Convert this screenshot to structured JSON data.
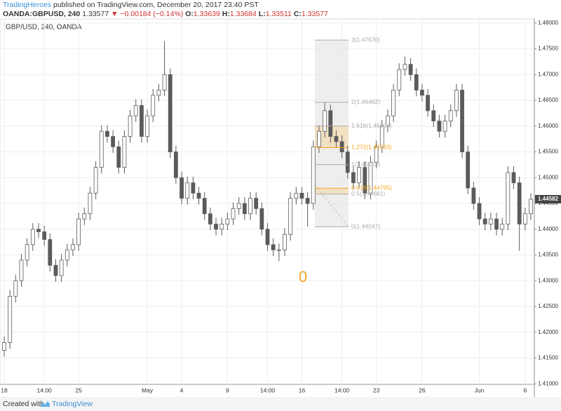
{
  "header": {
    "author": "TradingHeroes",
    "published": "published on TradingView.com, December 20, 2017 23:40 PST",
    "symbol": "OANDA:GBPUSD, 240",
    "price": "1.33577",
    "change": "▼ −0.00184 (−0.14%)",
    "ohlc": [
      {
        "k": "O:",
        "v": "1.33639"
      },
      {
        "k": "H:",
        "v": "1.33684"
      },
      {
        "k": "L:",
        "v": "1.33511"
      },
      {
        "k": "C:",
        "v": "1.33577"
      }
    ]
  },
  "footer": {
    "created": "Created with",
    "brand": "TradingView"
  },
  "chart_data": {
    "type": "candlestick",
    "legend_text": "GBP/USD, 240, OANDA",
    "categories": [
      "18",
      null,
      null,
      null,
      null,
      null,
      null,
      "14:00",
      null,
      null,
      null,
      null,
      null,
      "25",
      null,
      null,
      null,
      null,
      null,
      null,
      null,
      null,
      null,
      null,
      null,
      "May",
      null,
      null,
      null,
      null,
      null,
      "4",
      null,
      null,
      null,
      null,
      null,
      null,
      null,
      "9",
      null,
      null,
      null,
      null,
      null,
      null,
      "14:00",
      null,
      null,
      null,
      null,
      null,
      "16",
      null,
      null,
      null,
      null,
      null,
      null,
      "14:00",
      null,
      null,
      null,
      null,
      null,
      "23",
      null,
      null,
      null,
      null,
      null,
      null,
      null,
      "26",
      null,
      null,
      null,
      null,
      null,
      null,
      null,
      null,
      null,
      "Jun",
      null,
      null,
      null,
      null,
      null,
      null,
      null,
      "6",
      null
    ],
    "open": [
      1.4165,
      1.418,
      1.427,
      1.43,
      1.434,
      1.437,
      1.44,
      1.4395,
      1.438,
      1.433,
      1.431,
      1.434,
      1.436,
      1.437,
      1.442,
      1.443,
      1.447,
      1.452,
      1.459,
      1.458,
      1.456,
      1.452,
      1.458,
      1.462,
      1.464,
      1.458,
      1.462,
      1.466,
      1.467,
      1.47,
      1.455,
      1.45,
      1.446,
      1.449,
      1.447,
      1.446,
      1.443,
      1.441,
      1.44,
      1.441,
      1.442,
      1.444,
      1.445,
      1.443,
      1.446,
      1.444,
      1.44,
      1.437,
      1.436,
      1.436,
      1.439,
      1.446,
      1.447,
      1.446,
      1.445,
      1.456,
      1.459,
      1.463,
      1.458,
      1.457,
      1.455,
      1.451,
      1.449,
      1.452,
      1.447,
      1.453,
      1.456,
      1.46,
      1.462,
      1.467,
      1.471,
      1.472,
      1.47,
      1.467,
      1.466,
      1.463,
      1.461,
      1.459,
      1.461,
      1.463,
      1.467,
      1.455,
      1.448,
      1.445,
      1.442,
      1.441,
      1.442,
      1.44,
      1.441,
      1.451,
      1.449,
      1.441,
      1.443
    ],
    "high": [
      1.4192,
      1.4282,
      1.4312,
      1.4352,
      1.4382,
      1.4412,
      1.4412,
      1.4407,
      1.4392,
      1.4342,
      1.4352,
      1.4372,
      1.4382,
      1.4432,
      1.4442,
      1.4482,
      1.4532,
      1.4602,
      1.4602,
      1.4592,
      1.4572,
      1.4592,
      1.4632,
      1.4652,
      1.4652,
      1.4632,
      1.4672,
      1.4682,
      1.4765,
      1.4712,
      1.4562,
      1.4512,
      1.4502,
      1.4502,
      1.4482,
      1.4472,
      1.4442,
      1.4422,
      1.4422,
      1.4432,
      1.4452,
      1.4462,
      1.4462,
      1.4472,
      1.4472,
      1.4452,
      1.4412,
      1.4382,
      1.4372,
      1.4402,
      1.4472,
      1.4482,
      1.4482,
      1.4472,
      1.4572,
      1.4602,
      1.4646,
      1.4642,
      1.4592,
      1.4582,
      1.4562,
      1.4522,
      1.4532,
      1.4532,
      1.4542,
      1.4572,
      1.4612,
      1.4632,
      1.4682,
      1.4722,
      1.4735,
      1.4732,
      1.4712,
      1.4682,
      1.4672,
      1.4642,
      1.4622,
      1.4622,
      1.4642,
      1.4682,
      1.4682,
      1.4562,
      1.4492,
      1.4462,
      1.4432,
      1.4432,
      1.4432,
      1.4422,
      1.4522,
      1.4522,
      1.4502,
      1.4442,
      1.447
    ],
    "low": [
      1.4153,
      1.4168,
      1.4258,
      1.4288,
      1.4328,
      1.4358,
      1.4383,
      1.4368,
      1.4318,
      1.4298,
      1.4298,
      1.4328,
      1.4348,
      1.4358,
      1.4408,
      1.4418,
      1.4458,
      1.4508,
      1.4568,
      1.4548,
      1.4508,
      1.4508,
      1.4568,
      1.4608,
      1.4568,
      1.4568,
      1.4608,
      1.4648,
      1.4658,
      1.4538,
      1.4488,
      1.4448,
      1.4448,
      1.4458,
      1.4448,
      1.4418,
      1.4398,
      1.4388,
      1.4388,
      1.4398,
      1.4408,
      1.4428,
      1.4418,
      1.4418,
      1.4428,
      1.4388,
      1.4358,
      1.4348,
      1.4338,
      1.4348,
      1.4378,
      1.4448,
      1.4448,
      1.4405,
      1.4438,
      1.4548,
      1.4578,
      1.4568,
      1.4558,
      1.4538,
      1.4498,
      1.4478,
      1.4478,
      1.4458,
      1.4458,
      1.4518,
      1.4548,
      1.4588,
      1.4608,
      1.4658,
      1.4698,
      1.4688,
      1.4658,
      1.4648,
      1.4618,
      1.4598,
      1.4578,
      1.4578,
      1.4598,
      1.4618,
      1.4538,
      1.4468,
      1.4438,
      1.4408,
      1.4398,
      1.4398,
      1.4388,
      1.4388,
      1.4398,
      1.4478,
      1.4358,
      1.4398,
      1.4418
    ],
    "close": [
      1.418,
      1.427,
      1.43,
      1.434,
      1.437,
      1.44,
      1.4395,
      1.438,
      1.433,
      1.431,
      1.434,
      1.436,
      1.437,
      1.442,
      1.443,
      1.447,
      1.452,
      1.459,
      1.458,
      1.456,
      1.452,
      1.458,
      1.462,
      1.464,
      1.458,
      1.462,
      1.466,
      1.467,
      1.47,
      1.455,
      1.45,
      1.446,
      1.449,
      1.447,
      1.446,
      1.443,
      1.441,
      1.44,
      1.441,
      1.442,
      1.444,
      1.445,
      1.443,
      1.446,
      1.444,
      1.44,
      1.437,
      1.436,
      1.436,
      1.439,
      1.446,
      1.447,
      1.446,
      1.445,
      1.456,
      1.459,
      1.463,
      1.458,
      1.457,
      1.455,
      1.451,
      1.449,
      1.452,
      1.447,
      1.453,
      1.456,
      1.46,
      1.462,
      1.467,
      1.471,
      1.472,
      1.47,
      1.467,
      1.466,
      1.463,
      1.461,
      1.459,
      1.461,
      1.463,
      1.467,
      1.455,
      1.448,
      1.445,
      1.442,
      1.441,
      1.442,
      1.44,
      1.441,
      1.451,
      1.449,
      1.441,
      1.443,
      1.44582
    ],
    "up_color": "#ffffff",
    "down_color": "#5b5b5b",
    "outline_color": "#5b5b5b",
    "ylim": [
      1.4099,
      1.4808
    ],
    "yticks": [
      {
        "value": 1.41,
        "label": "1.41000"
      },
      {
        "value": 1.415,
        "label": "1.41500"
      },
      {
        "value": 1.42,
        "label": "1.42000"
      },
      {
        "value": 1.425,
        "label": "1.42500"
      },
      {
        "value": 1.43,
        "label": "1.43000"
      },
      {
        "value": 1.435,
        "label": "1.43500"
      },
      {
        "value": 1.44,
        "label": "1.44000"
      },
      {
        "value": 1.445,
        "label": "1.44500"
      },
      {
        "value": 1.45,
        "label": "1.45000"
      },
      {
        "value": 1.455,
        "label": "1.45500"
      },
      {
        "value": 1.46,
        "label": "1.46000"
      },
      {
        "value": 1.465,
        "label": "1.46500"
      },
      {
        "value": 1.47,
        "label": "1.47000"
      },
      {
        "value": 1.475,
        "label": "1.47500"
      },
      {
        "value": 1.48,
        "label": "1.48000"
      }
    ],
    "grid": true,
    "last_price": {
      "value": 1.44582,
      "label": "1.44582"
    },
    "fib": {
      "levels": [
        {
          "label": "3(1.47670)",
          "value": 1.4767,
          "color": "#aaaaaa"
        },
        {
          "label": "2(1.46462)",
          "value": 1.46462,
          "color": "#aaaaaa"
        },
        {
          "label": "1.618(1.46001)",
          "value": 1.46001,
          "color": "#aaaaaa"
        },
        {
          "label": "1.272(1.45583)",
          "value": 1.45583,
          "color": "#f5a623"
        },
        {
          "label": "1(1.45253)",
          "value": 1.45253,
          "color": "#aaaaaa"
        },
        {
          "label": "0.618(1.44795)",
          "value": 1.44795,
          "color": "#f5a623"
        },
        {
          "label": "0.5(1.44681)",
          "value": 1.44681,
          "color": "#aaaaaa"
        },
        {
          "label": "0(1.44047)",
          "value": 1.44047,
          "color": "#aaaaaa"
        }
      ]
    },
    "annotation": {
      "text": "0",
      "color": "#f5a623"
    }
  }
}
